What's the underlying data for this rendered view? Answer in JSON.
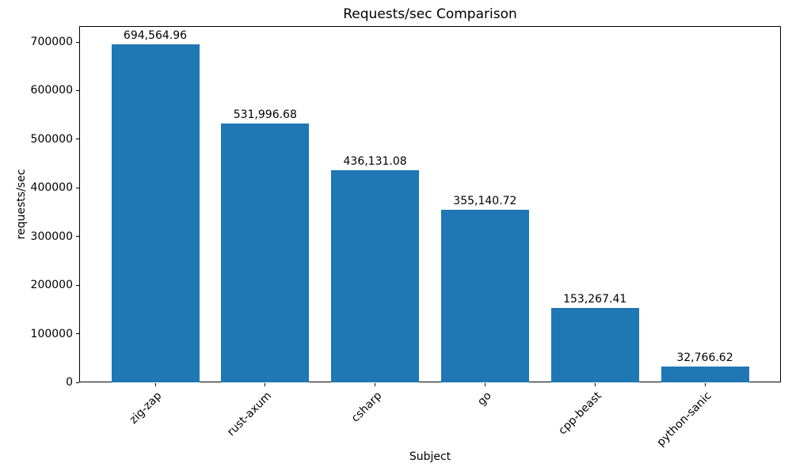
{
  "chart_data": {
    "type": "bar",
    "title": "Requests/sec Comparison",
    "xlabel": "Subject",
    "ylabel": "requests/sec",
    "categories": [
      "zig-zap",
      "rust-axum",
      "csharp",
      "go",
      "cpp-beast",
      "python-sanic"
    ],
    "values": [
      694564.96,
      531996.68,
      436131.08,
      355140.72,
      153267.41,
      32766.62
    ],
    "value_labels": [
      "694,564.96",
      "531,996.68",
      "436,131.08",
      "355,140.72",
      "153,267.41",
      "32,766.62"
    ],
    "yticks": [
      0,
      100000,
      200000,
      300000,
      400000,
      500000,
      600000,
      700000
    ],
    "ylim": [
      0,
      732560
    ],
    "bar_color": "#1f77b4",
    "text_color": "#000000",
    "grid": false,
    "legend": null,
    "xtick_rotation_deg": 45
  }
}
